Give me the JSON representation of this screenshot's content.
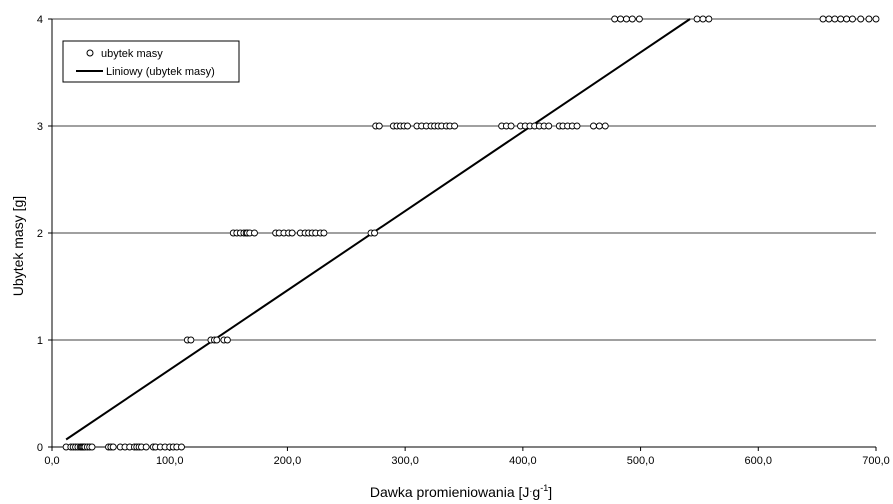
{
  "chart_data": {
    "type": "scatter",
    "xlabel": "Dawka promieniowania [J",
    "xlabel_dot": "·",
    "xlabel_g": "g",
    "xlabel_exp": "-1",
    "xlabel_close": "]",
    "ylabel": "Ubytek masy [g]",
    "xlim": [
      0,
      700
    ],
    "ylim": [
      0,
      4
    ],
    "x_ticks": [
      {
        "value": 0,
        "label": "0,0"
      },
      {
        "value": 100,
        "label": "100,0"
      },
      {
        "value": 200,
        "label": "200,0"
      },
      {
        "value": 300,
        "label": "300,0"
      },
      {
        "value": 400,
        "label": "400,0"
      },
      {
        "value": 500,
        "label": "500,0"
      },
      {
        "value": 600,
        "label": "600,0"
      },
      {
        "value": 700,
        "label": "700,0"
      }
    ],
    "y_ticks": [
      {
        "value": 0,
        "label": "0"
      },
      {
        "value": 1,
        "label": "1"
      },
      {
        "value": 2,
        "label": "2"
      },
      {
        "value": 3,
        "label": "3"
      },
      {
        "value": 4,
        "label": "4"
      }
    ],
    "grid": "horizontal",
    "legend_position": "top-left",
    "series": [
      {
        "name": "ubytek masy",
        "marker": "open-circle",
        "points": [
          [
            12,
            0
          ],
          [
            16,
            0
          ],
          [
            18,
            0
          ],
          [
            20,
            0
          ],
          [
            22,
            0
          ],
          [
            24,
            0
          ],
          [
            25,
            0
          ],
          [
            26,
            0
          ],
          [
            27,
            0
          ],
          [
            28,
            0
          ],
          [
            30,
            0
          ],
          [
            32,
            0
          ],
          [
            34,
            0
          ],
          [
            48,
            0
          ],
          [
            50,
            0
          ],
          [
            52,
            0
          ],
          [
            58,
            0
          ],
          [
            62,
            0
          ],
          [
            66,
            0
          ],
          [
            70,
            0
          ],
          [
            72,
            0
          ],
          [
            74,
            0
          ],
          [
            76,
            0
          ],
          [
            80,
            0
          ],
          [
            86,
            0
          ],
          [
            88,
            0
          ],
          [
            92,
            0
          ],
          [
            96,
            0
          ],
          [
            100,
            0
          ],
          [
            103,
            0
          ],
          [
            106,
            0
          ],
          [
            110,
            0
          ],
          [
            115,
            1
          ],
          [
            118,
            1
          ],
          [
            135,
            1
          ],
          [
            138,
            1
          ],
          [
            140,
            1
          ],
          [
            146,
            1
          ],
          [
            149,
            1
          ],
          [
            154,
            2
          ],
          [
            157,
            2
          ],
          [
            160,
            2
          ],
          [
            163,
            2
          ],
          [
            165,
            2
          ],
          [
            166,
            2
          ],
          [
            168,
            2
          ],
          [
            172,
            2
          ],
          [
            190,
            2
          ],
          [
            193,
            2
          ],
          [
            197,
            2
          ],
          [
            201,
            2
          ],
          [
            204,
            2
          ],
          [
            211,
            2
          ],
          [
            215,
            2
          ],
          [
            218,
            2
          ],
          [
            221,
            2
          ],
          [
            224,
            2
          ],
          [
            228,
            2
          ],
          [
            231,
            2
          ],
          [
            271,
            2
          ],
          [
            274,
            2
          ],
          [
            275,
            3
          ],
          [
            278,
            3
          ],
          [
            290,
            3
          ],
          [
            293,
            3
          ],
          [
            296,
            3
          ],
          [
            299,
            3
          ],
          [
            302,
            3
          ],
          [
            310,
            3
          ],
          [
            314,
            3
          ],
          [
            318,
            3
          ],
          [
            322,
            3
          ],
          [
            325,
            3
          ],
          [
            328,
            3
          ],
          [
            331,
            3
          ],
          [
            335,
            3
          ],
          [
            338,
            3
          ],
          [
            342,
            3
          ],
          [
            382,
            3
          ],
          [
            386,
            3
          ],
          [
            390,
            3
          ],
          [
            398,
            3
          ],
          [
            402,
            3
          ],
          [
            406,
            3
          ],
          [
            410,
            3
          ],
          [
            414,
            3
          ],
          [
            418,
            3
          ],
          [
            422,
            3
          ],
          [
            431,
            3
          ],
          [
            434,
            3
          ],
          [
            438,
            3
          ],
          [
            442,
            3
          ],
          [
            446,
            3
          ],
          [
            460,
            3
          ],
          [
            465,
            3
          ],
          [
            470,
            3
          ],
          [
            478,
            4
          ],
          [
            483,
            4
          ],
          [
            488,
            4
          ],
          [
            493,
            4
          ],
          [
            499,
            4
          ],
          [
            548,
            4
          ],
          [
            553,
            4
          ],
          [
            558,
            4
          ],
          [
            655,
            4
          ],
          [
            660,
            4
          ],
          [
            665,
            4
          ],
          [
            670,
            4
          ],
          [
            675,
            4
          ],
          [
            680,
            4
          ],
          [
            687,
            4
          ],
          [
            694,
            4
          ],
          [
            700,
            4
          ]
        ]
      },
      {
        "name": "Liniowy (ubytek masy)",
        "type": "line",
        "x": [
          12,
          542
        ],
        "y": [
          0.07,
          4.0
        ]
      }
    ]
  }
}
